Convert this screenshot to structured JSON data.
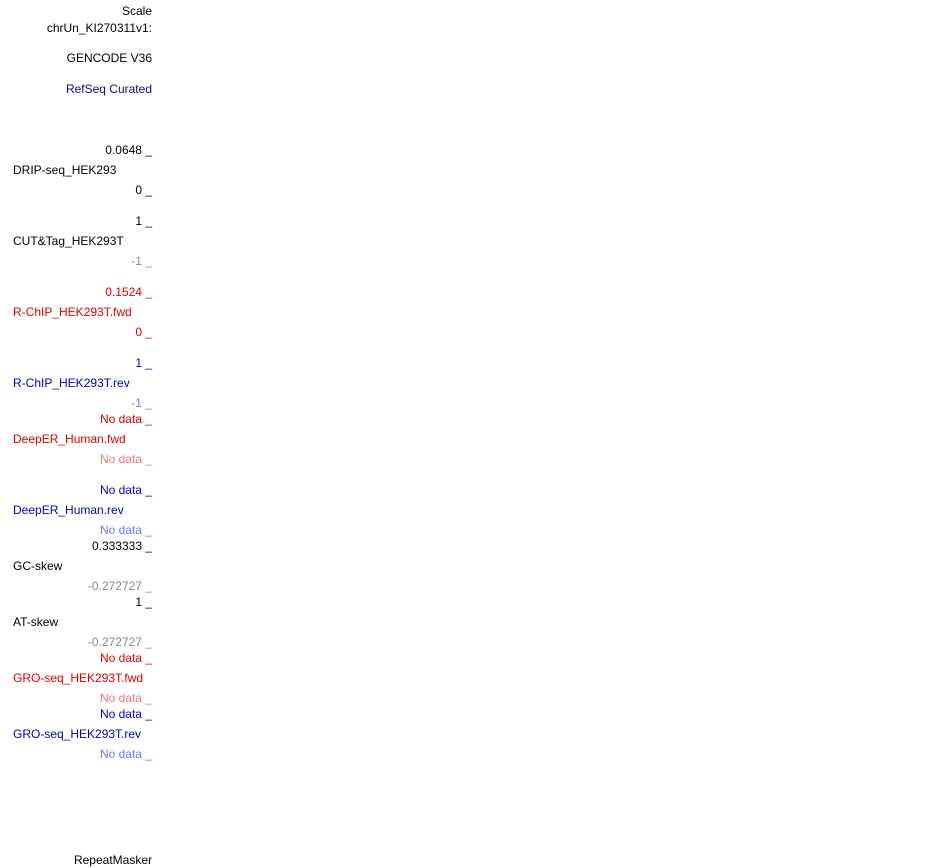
{
  "header": {
    "scale": "Scale",
    "chrom": "chrUn_KI270311v1:",
    "gencode": "GENCODE V36",
    "refseq": "RefSeq Curated"
  },
  "colors": {
    "black": "#000000",
    "gray": "#888888",
    "red": "#dd0000",
    "lightred": "#ee7777",
    "blue": "#0000bb",
    "lightblue": "#7777ee",
    "refseq": "#0c0c78"
  },
  "tracks": {
    "drip": {
      "name": "DRIP-seq_HEK293",
      "max": "0.0648 _",
      "min": "0 _"
    },
    "cuttag": {
      "name": "CUT&Tag_HEK293T",
      "max": "1 _",
      "min": "-1 _"
    },
    "rchip_fwd": {
      "name": "R-ChIP_HEK293T.fwd",
      "max": "0.1524 _",
      "min": "0 _"
    },
    "rchip_rev": {
      "name": "R-ChIP_HEK293T.rev",
      "max": "1 _",
      "min": "-1 _"
    },
    "deeper_fwd": {
      "name": "DeepER_Human.fwd",
      "max": "No data _",
      "min": "No data _"
    },
    "deeper_rev": {
      "name": "DeepER_Human.rev",
      "max": "No data _",
      "min": "No data _"
    },
    "gcskew": {
      "name": "GC-skew",
      "max": "0.333333 _",
      "min": "-0.272727 _"
    },
    "atskew": {
      "name": "AT-skew",
      "max": "1 _",
      "min": "-0.272727 _"
    },
    "gro_fwd": {
      "name": "GRO-seq_HEK293T.fwd",
      "max": "No data _",
      "min": "No data _"
    },
    "gro_rev": {
      "name": "GRO-seq_HEK293T.rev",
      "max": "No data _",
      "min": "No data _"
    }
  },
  "footer": {
    "repeatmasker": "RepeatMasker"
  }
}
